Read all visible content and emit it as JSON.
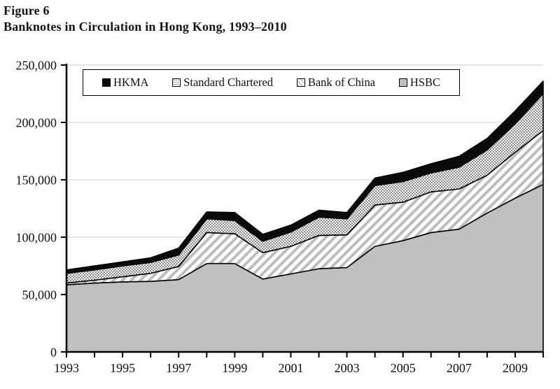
{
  "figure": {
    "label": "Figure 6",
    "title": "Banknotes in Circulation in Hong Kong, 1993–2010"
  },
  "chart_data": {
    "type": "area",
    "stacked": true,
    "title": "Figure 6",
    "subtitle": "Banknotes in Circulation in Hong Kong, 1993–2010",
    "xlabel": "",
    "ylabel": "",
    "x": [
      1993,
      1994,
      1995,
      1996,
      1997,
      1998,
      1999,
      2000,
      2001,
      2002,
      2003,
      2004,
      2005,
      2006,
      2007,
      2008,
      2009,
      2010
    ],
    "xtick_labels": [
      "1993",
      "1995",
      "1997",
      "1999",
      "2001",
      "2003",
      "2005",
      "2007",
      "2009"
    ],
    "ylim": [
      0,
      250000
    ],
    "ytick_step": 50000,
    "ytick_labels": [
      "0",
      "50,000",
      "100,000",
      "150,000",
      "200,000",
      "250,000"
    ],
    "grid": "horizontal-light",
    "legend_position": "top-inside-box",
    "legend": [
      "HKMA",
      "Standard Chartered",
      "Bank of China",
      "HSBC"
    ],
    "series": [
      {
        "name": "HSBC",
        "pattern": "solid-gray",
        "color": "#c0c0c0",
        "values": [
          58500,
          60000,
          61000,
          61500,
          63000,
          77000,
          77000,
          63500,
          68000,
          72500,
          73500,
          92000,
          97000,
          104000,
          107000,
          121000,
          134000,
          146000
        ]
      },
      {
        "name": "Bank of China",
        "pattern": "diagonal-hatch",
        "color": "#bdbdbd",
        "values": [
          1500,
          2500,
          4500,
          7000,
          11500,
          27000,
          26000,
          23000,
          24000,
          29000,
          28500,
          36000,
          33500,
          35500,
          35000,
          33000,
          40000,
          47000
        ]
      },
      {
        "name": "Standard Chartered",
        "pattern": "dot-grid",
        "color": "#2a2a2a",
        "values": [
          8500,
          9000,
          9500,
          9500,
          10000,
          12000,
          11500,
          10000,
          12500,
          16000,
          14000,
          17000,
          18000,
          16500,
          19000,
          22000,
          25000,
          32000
        ]
      },
      {
        "name": "HKMA",
        "pattern": "solid-black",
        "color": "#0a0a0a",
        "values": [
          3000,
          3500,
          3500,
          4000,
          6000,
          6000,
          7000,
          6000,
          6000,
          6000,
          5500,
          6500,
          8000,
          8000,
          9500,
          10000,
          11000,
          11000
        ]
      }
    ],
    "colors": {
      "axis": "#000000",
      "gridline": "#cccccc",
      "outline": "#000000",
      "text": "#111111"
    }
  }
}
